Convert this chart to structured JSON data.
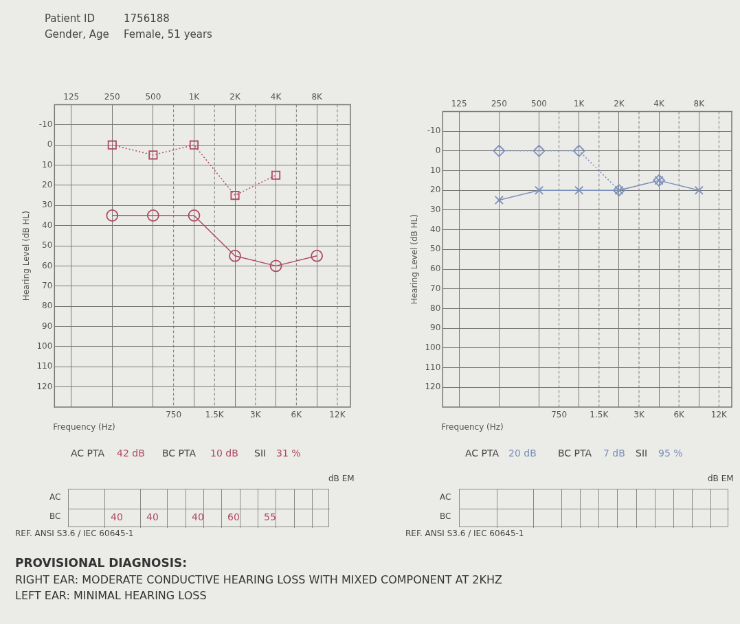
{
  "chart_data": [
    {
      "type": "line",
      "ylabel": "Hearing Level (dB HL)",
      "xlabel": "Frequency (Hz)",
      "grid": true,
      "categories": [
        "125",
        "250",
        "500",
        "1K",
        "2K",
        "4K",
        "8K"
      ],
      "ylim": [
        130,
        -20
      ],
      "yticks": [
        -10,
        0,
        10,
        20,
        30,
        40,
        50,
        60,
        70,
        80,
        90,
        100,
        110,
        120
      ],
      "series": [
        {
          "color": "#b04a62",
          "marker": "circle",
          "line_style": "solid",
          "values": [
            null,
            35,
            35,
            35,
            55,
            60,
            55
          ]
        },
        {
          "color": "#b04a62",
          "marker": "square",
          "line_style": "dotted",
          "values": [
            null,
            0,
            5,
            0,
            25,
            15,
            null
          ]
        }
      ],
      "annotations": [
        "750",
        "1.5K",
        "3K",
        "6K",
        "12K",
        "Patient ID",
        "1756188",
        "Gender, Age",
        "Female, 51 years",
        "AC PTA",
        "42 dB",
        "BC PTA",
        "10 dB",
        "SII",
        "31 %",
        "dB EM",
        "AC",
        "BC",
        "40",
        "40",
        "40",
        "60",
        "55",
        "REF. ANSI S3.6 / IEC 60645-1",
        "PROVISIONAL DIAGNOSIS:",
        "RIGHT EAR: MODERATE CONDUCTIVE HEARING LOSS WITH MIXED COMPONENT AT 2KHZ",
        "LEFT EAR: MINIMAL HEARING LOSS"
      ]
    },
    {
      "type": "line",
      "ylabel": "Hearing Level (dB HL)",
      "xlabel": "Frequency (Hz)",
      "grid": true,
      "categories": [
        "125",
        "250",
        "500",
        "1K",
        "2K",
        "4K",
        "8K"
      ],
      "ylim": [
        130,
        -20
      ],
      "yticks": [
        -10,
        0,
        10,
        20,
        30,
        40,
        50,
        60,
        70,
        80,
        90,
        100,
        110,
        120
      ],
      "series": [
        {
          "color": "#7b8fbb",
          "marker": "cross",
          "line_style": "solid",
          "values": [
            null,
            25,
            20,
            20,
            20,
            15,
            20
          ]
        },
        {
          "color": "#7b8fbb",
          "marker": "diamond",
          "line_style": "dotted",
          "values": [
            null,
            0,
            0,
            0,
            20,
            15,
            null
          ]
        }
      ],
      "annotations": [
        "750",
        "1.5K",
        "3K",
        "6K",
        "12K",
        "AC PTA",
        "20 dB",
        "BC PTA",
        "7 dB",
        "SII",
        "95 %",
        "dB EM",
        "AC",
        "BC",
        "REF. ANSI S3.6 / IEC 60645-1"
      ]
    }
  ]
}
